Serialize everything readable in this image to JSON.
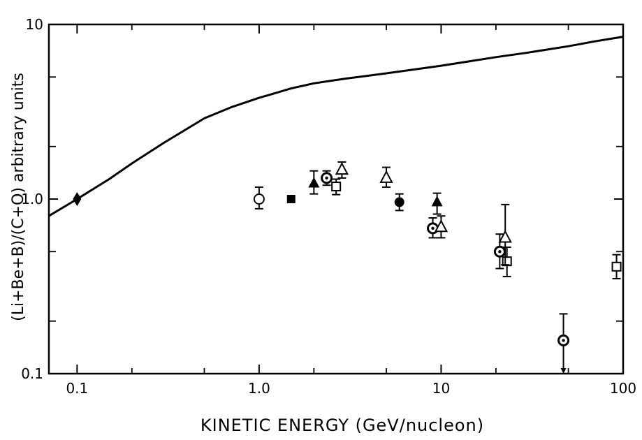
{
  "chart_data": {
    "type": "scatter",
    "xlabel": "KINETIC ENERGY (GeV/nucleon)",
    "ylabel": "(Li+Be+B)/(C+O) arbitrary units",
    "xscale": "log",
    "yscale": "log",
    "xlim": [
      0.07,
      100
    ],
    "ylim": [
      0.1,
      10
    ],
    "x_ticks": [
      {
        "value": 0.1,
        "label": "0.1"
      },
      {
        "value": 1,
        "label": "1.0"
      },
      {
        "value": 10,
        "label": "10"
      },
      {
        "value": 100,
        "label": "100"
      }
    ],
    "y_ticks": [
      {
        "value": 0.1,
        "label": "0.1"
      },
      {
        "value": 1,
        "label": "1.0"
      },
      {
        "value": 10,
        "label": "10"
      }
    ],
    "curve": {
      "x": [
        0.07,
        0.1,
        0.15,
        0.2,
        0.3,
        0.5,
        0.7,
        1.0,
        1.5,
        2.0,
        3.0,
        5.0,
        10,
        20,
        30,
        50,
        70,
        100
      ],
      "y": [
        0.8,
        1.0,
        1.3,
        1.6,
        2.1,
        2.9,
        3.35,
        3.8,
        4.3,
        4.6,
        4.9,
        5.25,
        5.8,
        6.5,
        6.9,
        7.5,
        8.0,
        8.5
      ]
    },
    "series": [
      {
        "marker": "diamond",
        "points": [
          {
            "x": 0.1,
            "y": 1.0
          }
        ]
      },
      {
        "marker": "open-circle",
        "points": [
          {
            "x": 1.0,
            "y": 1.0,
            "yerr_low": 0.88,
            "yerr_high": 1.17
          }
        ]
      },
      {
        "marker": "filled-square",
        "points": [
          {
            "x": 1.5,
            "y": 1.0
          }
        ]
      },
      {
        "marker": "filled-triangle",
        "points": [
          {
            "x": 2.0,
            "y": 1.23,
            "yerr_low": 1.07,
            "yerr_high": 1.45
          },
          {
            "x": 9.5,
            "y": 0.96,
            "yerr_low": 0.82,
            "yerr_high": 1.08
          }
        ]
      },
      {
        "marker": "dotted-circle",
        "points": [
          {
            "x": 2.35,
            "y": 1.32,
            "yerr_low": 1.2,
            "yerr_high": 1.45
          },
          {
            "x": 9.0,
            "y": 0.68,
            "yerr_low": 0.6,
            "yerr_high": 0.78
          },
          {
            "x": 21.0,
            "y": 0.5,
            "yerr_low": 0.4,
            "yerr_high": 0.63
          },
          {
            "x": 47.0,
            "y": 0.155,
            "yerr_low": 0.1,
            "yerr_high": 0.22
          }
        ]
      },
      {
        "marker": "open-square",
        "points": [
          {
            "x": 2.65,
            "y": 1.18,
            "yerr_low": 1.06,
            "yerr_high": 1.3
          },
          {
            "x": 23.0,
            "y": 0.44,
            "yerr_low": 0.36,
            "yerr_high": 0.53
          },
          {
            "x": 92.0,
            "y": 0.41,
            "yerr_low": 0.35,
            "yerr_high": 0.48
          }
        ]
      },
      {
        "marker": "open-triangle",
        "points": [
          {
            "x": 2.85,
            "y": 1.47,
            "yerr_low": 1.32,
            "yerr_high": 1.63
          },
          {
            "x": 5.0,
            "y": 1.32,
            "yerr_low": 1.17,
            "yerr_high": 1.52
          },
          {
            "x": 10.0,
            "y": 0.69,
            "yerr_low": 0.6,
            "yerr_high": 0.8
          },
          {
            "x": 22.5,
            "y": 0.6,
            "yerr_low": 0.42,
            "yerr_high": 0.93
          }
        ]
      },
      {
        "marker": "filled-circle",
        "points": [
          {
            "x": 5.9,
            "y": 0.96,
            "yerr_low": 0.86,
            "yerr_high": 1.07
          }
        ]
      }
    ],
    "grid": false,
    "legend": "none"
  }
}
